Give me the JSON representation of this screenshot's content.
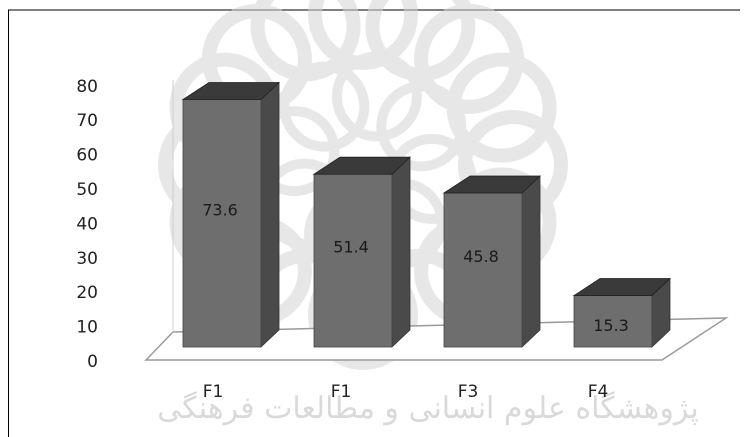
{
  "chart_data": {
    "type": "bar",
    "categories": [
      "F1",
      "F1",
      "F3",
      "F4"
    ],
    "values": [
      73.6,
      51.4,
      45.8,
      15.3
    ],
    "data_labels": [
      "73.6",
      "51.4",
      "45.8",
      "15.3"
    ],
    "yticks": [
      0,
      10,
      20,
      30,
      40,
      50,
      60,
      70,
      80
    ],
    "ylim": [
      0,
      80
    ],
    "grid": false,
    "legend": "none",
    "title": "",
    "xlabel": "",
    "ylabel": ""
  },
  "watermark": {
    "text": "پژوهشگاه علوم انسانی و مطالعات فرهنگی"
  },
  "colors": {
    "bar_front": "#6e6e6e",
    "bar_top": "#3a3a3a",
    "bar_side": "#4a4a4a",
    "floor": "#ffffff",
    "floor_edge": "#9a9a9a",
    "frame": "#000000",
    "watermark": "#d4d4d4"
  }
}
